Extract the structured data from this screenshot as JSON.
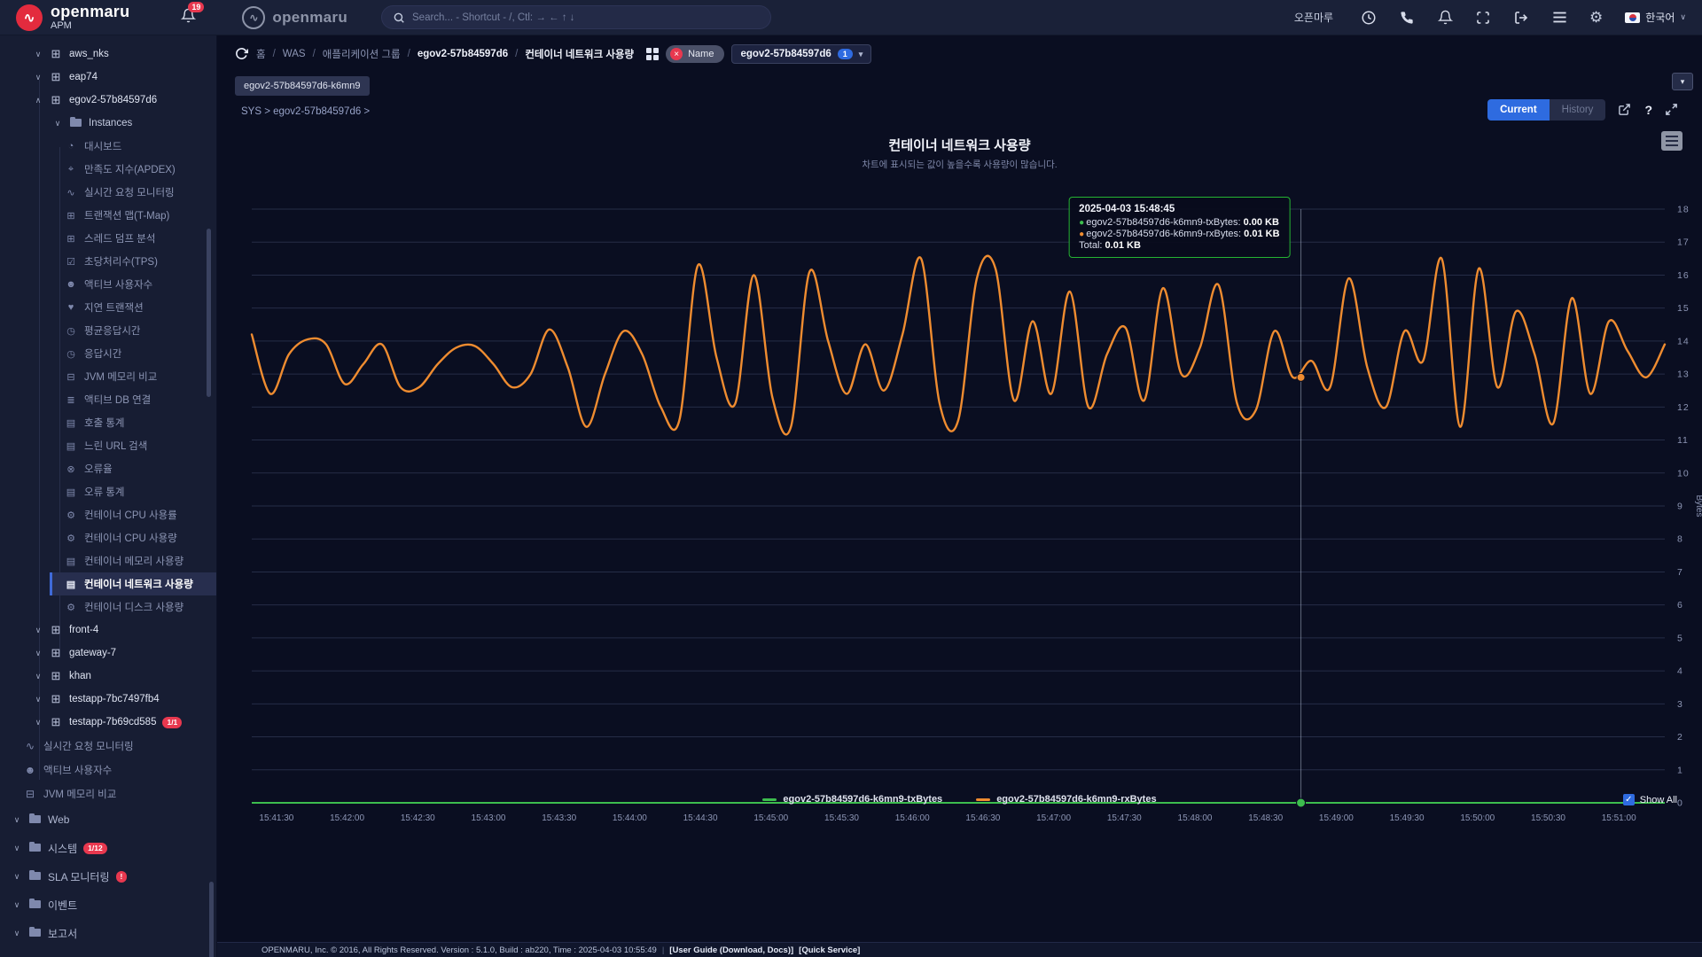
{
  "topbar": {
    "brand_name": "openmaru",
    "brand_sub": "APM",
    "logo_glyph": "∿",
    "notification_count": "19",
    "brand2_name": "openmaru",
    "search_placeholder": "Search... - Shortcut - /, Ctl: → ← ↑ ↓",
    "user_name": "오픈마루",
    "gear_glyph": "⚙",
    "language": "한국어",
    "lang_caret": "∨"
  },
  "sidebar": {
    "tree": [
      {
        "type": "app",
        "label": "aws_nks",
        "chev": "∨"
      },
      {
        "type": "app",
        "label": "eap74",
        "chev": "∨"
      },
      {
        "type": "app",
        "label": "egov2-57b84597d6",
        "chev": "∧"
      },
      {
        "type": "subfolder",
        "label": "Instances",
        "chev": "∨"
      },
      {
        "type": "sub",
        "icon": "dashboard",
        "glyph": "◔",
        "label": "대시보드"
      },
      {
        "type": "sub",
        "icon": "apdex",
        "glyph": "⌖",
        "label": "만족도 지수(APDEX)"
      },
      {
        "type": "sub",
        "icon": "realtime-monitor",
        "glyph": "∿",
        "label": "실시간 요청 모니터링"
      },
      {
        "type": "sub",
        "icon": "tmap",
        "glyph": "⊞",
        "label": "트랜잭션 맵(T-Map)"
      },
      {
        "type": "sub",
        "icon": "thread-dump",
        "glyph": "⊞",
        "label": "스레드 덤프 분석"
      },
      {
        "type": "sub",
        "icon": "tps",
        "glyph": "☑",
        "label": "초당처리수(TPS)"
      },
      {
        "type": "sub",
        "icon": "active-users",
        "glyph": "☻",
        "label": "액티브 사용자수"
      },
      {
        "type": "sub",
        "icon": "delayed-tx",
        "glyph": "♥",
        "label": "지연 트랜잭션"
      },
      {
        "type": "sub",
        "icon": "avg-response",
        "glyph": "◷",
        "label": "평균응답시간"
      },
      {
        "type": "sub",
        "icon": "response-time",
        "glyph": "◷",
        "label": "응답시간"
      },
      {
        "type": "sub",
        "icon": "jvm-memory",
        "glyph": "⊟",
        "label": "JVM 메모리 비교"
      },
      {
        "type": "sub",
        "icon": "active-db",
        "glyph": "≣",
        "label": "액티브 DB 연결"
      },
      {
        "type": "sub",
        "icon": "call-stats",
        "glyph": "▤",
        "label": "호출 통계"
      },
      {
        "type": "sub",
        "icon": "slow-url",
        "glyph": "▤",
        "label": "느린 URL 검색"
      },
      {
        "type": "sub",
        "icon": "error-rate",
        "glyph": "⊗",
        "label": "오류율"
      },
      {
        "type": "sub",
        "icon": "error-stats",
        "glyph": "▤",
        "label": "오류 통계"
      },
      {
        "type": "sub",
        "icon": "container-cpu-rate",
        "glyph": "⚙",
        "label": "컨테이너 CPU 사용률"
      },
      {
        "type": "sub",
        "icon": "container-cpu-usage",
        "glyph": "⚙",
        "label": "컨테이너 CPU 사용량"
      },
      {
        "type": "sub",
        "icon": "container-memory",
        "glyph": "▤",
        "label": "컨테이너 메모리 사용량"
      },
      {
        "type": "sub",
        "icon": "container-network",
        "glyph": "▤",
        "label": "컨테이너 네트워크 사용량",
        "selected": true
      },
      {
        "type": "sub",
        "icon": "container-disk",
        "glyph": "⚙",
        "label": "컨테이너 디스크 사용량"
      },
      {
        "type": "app",
        "label": "front-4",
        "chev": "∨"
      },
      {
        "type": "app",
        "label": "gateway-7",
        "chev": "∨"
      },
      {
        "type": "app",
        "label": "khan",
        "chev": "∨"
      },
      {
        "type": "app",
        "label": "testapp-7bc7497fb4",
        "chev": "∨"
      },
      {
        "type": "app",
        "label": "testapp-7b69cd585",
        "chev": "∨",
        "badge": "1/1"
      },
      {
        "type": "root",
        "icon": "realtime-monitor",
        "glyph": "∿",
        "label": "실시간 요청 모니터링"
      },
      {
        "type": "root",
        "icon": "active-users",
        "glyph": "☻",
        "label": "액티브 사용자수"
      },
      {
        "type": "root",
        "icon": "jvm-memory",
        "glyph": "⊟",
        "label": "JVM 메모리 비교"
      },
      {
        "type": "folder",
        "label": "Web",
        "chev": "∨"
      },
      {
        "type": "folder",
        "label": "시스템",
        "chev": "∨",
        "badge": "1/12"
      },
      {
        "type": "folder",
        "label": "SLA 모니터링",
        "chev": "∨",
        "badge": "!"
      },
      {
        "type": "folder",
        "label": "이벤트",
        "chev": "∨"
      },
      {
        "type": "folder",
        "label": "보고서",
        "chev": "∨"
      }
    ]
  },
  "breadcrumb": {
    "items": [
      {
        "label": "홈",
        "strong": false
      },
      {
        "label": "WAS",
        "strong": false
      },
      {
        "label": "애플리케이션 그룹",
        "strong": false
      },
      {
        "label": "egov2-57b84597d6",
        "strong": true
      },
      {
        "label": "컨테이너 네트워크 사용량",
        "strong": true
      }
    ],
    "separator": "/",
    "filter_pill": {
      "remove": "×",
      "label": "Name"
    },
    "dropdown": {
      "value": "egov2-57b84597d6",
      "count": "1",
      "caret": "▾"
    },
    "chip": "egov2-57b84597d6-k6mn9",
    "collapse_caret": "▾",
    "sys_path": "SYS > egov2-57b84597d6 >"
  },
  "controls": {
    "current_label": "Current",
    "history_label": "History",
    "help_label": "?"
  },
  "chart_data": {
    "type": "line",
    "title": "컨테이너 네트워크 사용량",
    "subtitle": "차트에 표시되는 값이 높을수록 사용량이 많습니다.",
    "ylabel": "Bytes",
    "ylim": [
      0,
      18
    ],
    "y_ticks": [
      0,
      1,
      2,
      3,
      4,
      5,
      6,
      7,
      8,
      9,
      10,
      11,
      12,
      13,
      14,
      15,
      16,
      17,
      18
    ],
    "grid": true,
    "legend_position": "bottom",
    "x_ticks": [
      "15:41:30",
      "15:42:00",
      "15:42:30",
      "15:43:00",
      "15:43:30",
      "15:44:00",
      "15:44:30",
      "15:45:00",
      "15:45:30",
      "15:46:00",
      "15:46:30",
      "15:47:00",
      "15:47:30",
      "15:48:00",
      "15:48:30",
      "15:49:00",
      "15:49:30",
      "15:50:00",
      "15:50:30",
      "15:51:00"
    ],
    "x_axis": {
      "span_seconds": 600,
      "first_tick_offset_seconds": 10.5,
      "tick_interval_seconds": 30
    },
    "series": [
      {
        "name": "egov2-57b84597d6-k6mn9-txBytes",
        "color": "#3dbd4e",
        "flat_value": 0
      },
      {
        "name": "egov2-57b84597d6-k6mn9-rxBytes",
        "color": "#ef8c30",
        "values": [
          14.2,
          12.4,
          13.6,
          14.05,
          13.9,
          12.7,
          13.3,
          13.9,
          12.6,
          12.6,
          13.3,
          13.8,
          13.85,
          13.3,
          12.6,
          13.0,
          14.35,
          13.2,
          11.4,
          13.0,
          14.3,
          13.6,
          12.0,
          11.6,
          16.3,
          13.5,
          12.1,
          16.0,
          12.3,
          11.4,
          16.1,
          14.0,
          12.4,
          13.9,
          12.5,
          14.2,
          16.5,
          12.1,
          11.6,
          15.9,
          16.2,
          12.2,
          14.6,
          12.4,
          15.5,
          12.0,
          13.6,
          14.4,
          12.2,
          15.6,
          13.0,
          13.8,
          15.7,
          12.1,
          11.9,
          14.3,
          12.9,
          13.4,
          12.6,
          15.9,
          13.2,
          12.0,
          14.3,
          13.4,
          16.5,
          11.4,
          16.2,
          12.6,
          14.9,
          13.6,
          11.5,
          15.3,
          12.4,
          14.6,
          13.7,
          12.9,
          13.9
        ]
      }
    ],
    "crosshair": {
      "time": "15:48:45",
      "fraction": 0.7425,
      "rx_value": 12.9,
      "tx_value": 0
    },
    "tooltip": {
      "header": "2025-04-03 15:48:45",
      "rows": [
        {
          "color": "#3dbd4e",
          "label": "egov2-57b84597d6-k6mn9-txBytes:",
          "value": "0.00 KB"
        },
        {
          "color": "#ef8c30",
          "label": "egov2-57b84597d6-k6mn9-rxBytes:",
          "value": "0.01 KB"
        }
      ],
      "total_label": "Total:",
      "total_value": "0.01 KB"
    },
    "legend": [
      {
        "color": "#3dbd4e",
        "label": "egov2-57b84597d6-k6mn9-txBytes"
      },
      {
        "color": "#ef8c30",
        "label": "egov2-57b84597d6-k6mn9-rxBytes"
      }
    ],
    "show_all_label": "Show All"
  },
  "footer": {
    "copyright": "OPENMARU, Inc. © 2016, All Rights Reserved. Version : 5.1.0, Build : ab220, Time : 2025-04-03 10:55:49",
    "divider": "|",
    "links": [
      "[User Guide (Download, Docs)]",
      "[Quick Service]"
    ]
  },
  "colors": {
    "accent_blue": "#2f6be0",
    "series_green": "#3dbd4e",
    "series_orange": "#ef8c30",
    "badge_red": "#e8384f",
    "grid_line": "#262d47",
    "tooltip_border": "#25b432"
  }
}
